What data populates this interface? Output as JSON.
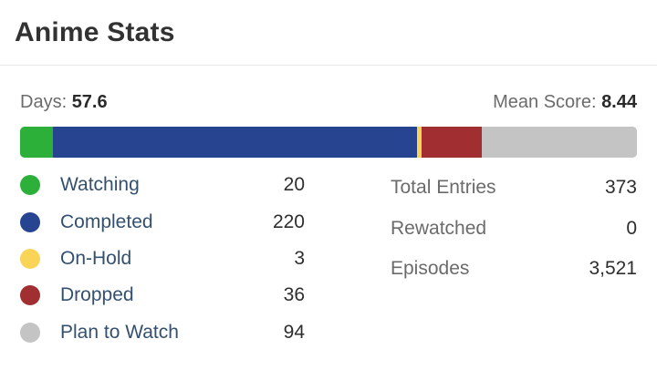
{
  "header": {
    "title": "Anime Stats"
  },
  "summary": {
    "days_label": "Days:",
    "days_value": "57.6",
    "mean_label": "Mean Score:",
    "mean_value": "8.44"
  },
  "statuses": [
    {
      "label": "Watching",
      "count": "20",
      "value": 20,
      "color": "#2db039"
    },
    {
      "label": "Completed",
      "count": "220",
      "value": 220,
      "color": "#26448f"
    },
    {
      "label": "On-Hold",
      "count": "3",
      "value": 3,
      "color": "#f9d457"
    },
    {
      "label": "Dropped",
      "count": "36",
      "value": 36,
      "color": "#a12f31"
    },
    {
      "label": "Plan to Watch",
      "count": "94",
      "value": 94,
      "color": "#c4c4c4"
    }
  ],
  "totals": [
    {
      "label": "Total Entries",
      "value": "373"
    },
    {
      "label": "Rewatched",
      "value": "0"
    },
    {
      "label": "Episodes",
      "value": "3,521"
    }
  ]
}
